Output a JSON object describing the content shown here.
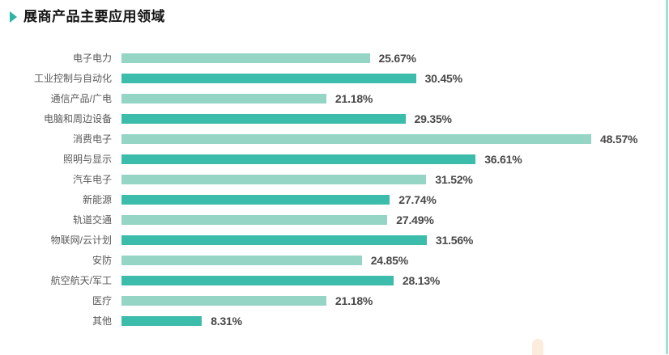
{
  "page": {
    "background": "#ffffff",
    "right_edge_line_color": "#a5ded7",
    "bottom_decoration_color": "#fcecdc"
  },
  "header": {
    "title": "展商产品主要应用领域",
    "marker_icon": "triangle-right-icon",
    "marker_color": "#2db4a3"
  },
  "chart_data": {
    "type": "bar",
    "orientation": "horizontal",
    "title": "展商产品主要应用领域",
    "categories": [
      "电子电力",
      "工业控制与自动化",
      "通信产品/广电",
      "电脑和周边设备",
      "消费电子",
      "照明与显示",
      "汽车电子",
      "新能源",
      "轨道交通",
      "物联网/云计划",
      "安防",
      "航空航天/军工",
      "医疗",
      "其他"
    ],
    "values": [
      25.67,
      30.45,
      21.18,
      29.35,
      48.57,
      36.61,
      31.52,
      27.74,
      27.49,
      31.56,
      24.85,
      28.13,
      21.18,
      8.31
    ],
    "value_labels": [
      "25.67%",
      "30.45%",
      "21.18%",
      "29.35%",
      "48.57%",
      "36.61%",
      "31.52%",
      "27.74%",
      "27.49%",
      "31.56%",
      "24.85%",
      "28.13%",
      "21.18%",
      "8.31%"
    ],
    "unit": "%",
    "xlim": [
      0,
      48.57
    ],
    "bar_colors_alternating": [
      "#94d5c6",
      "#3cbcab"
    ],
    "label_color": "#595959",
    "value_text_color": "#484848",
    "grid": false,
    "legend": false,
    "axis_ticks": false,
    "value_labels_position": "end-of-bar"
  }
}
